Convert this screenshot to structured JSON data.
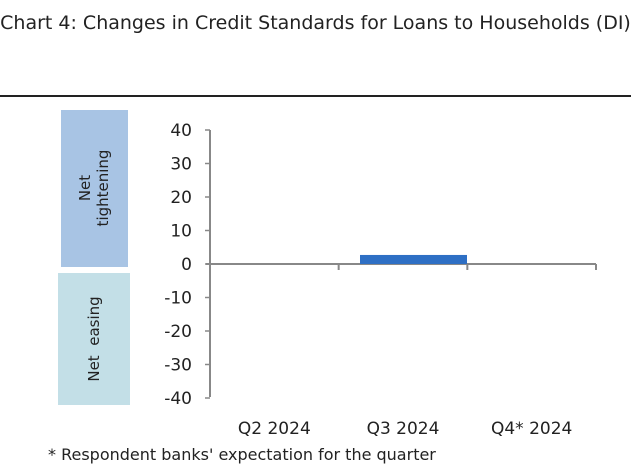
{
  "chart_data": {
    "type": "bar",
    "title": "Chart 4: Changes in Credit Standards for Loans to Households (DI)",
    "categories": [
      "Q2 2024",
      "Q3 2024",
      "Q4* 2024"
    ],
    "values": [
      0,
      2.7,
      0
    ],
    "ylim": [
      -40,
      40
    ],
    "yticks": [
      40,
      30,
      20,
      10,
      0,
      -10,
      -20,
      -30,
      -40
    ],
    "grid": false,
    "bar_color": "#2e6fc4",
    "bands": [
      {
        "label": "Net tightening",
        "lines": [
          "Net",
          "tightening"
        ],
        "color": "#a8c4e4"
      },
      {
        "label": "Net easing",
        "lines": [
          "Net  easing"
        ],
        "color": "#c3dfe7"
      }
    ],
    "footnote": "* Respondent banks' expectation for the quarter"
  }
}
